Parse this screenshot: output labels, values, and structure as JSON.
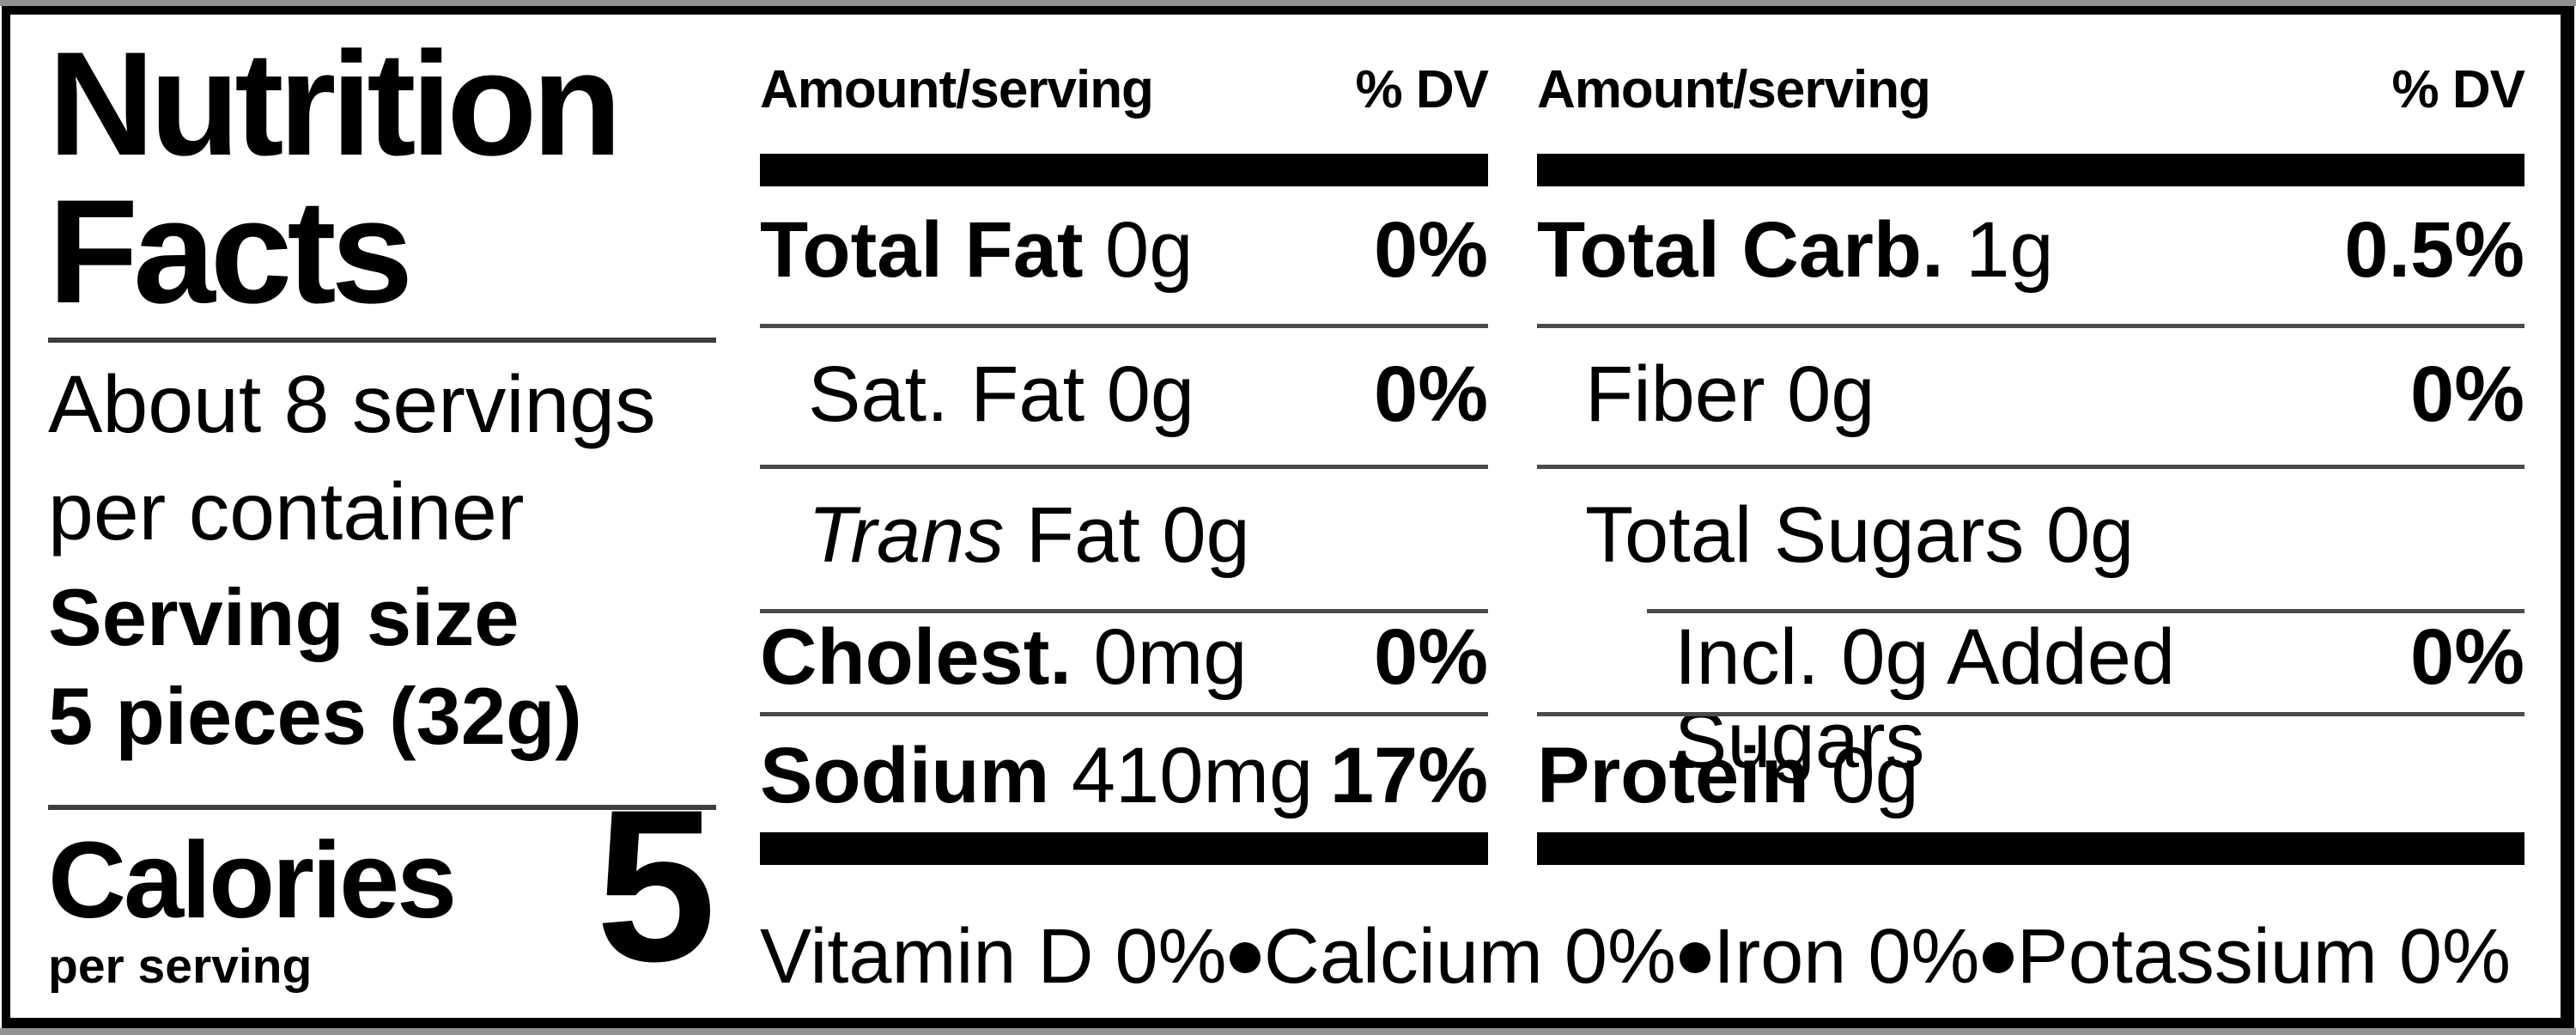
{
  "label": {
    "title_line1": "Nutrition",
    "title_line2": "Facts",
    "servings_line1": "About 8 servings",
    "servings_line2": "per container",
    "serving_size_label": "Serving size",
    "serving_size_value": "5 pieces (32g)",
    "calories_label": "Calories",
    "calories_sub": "per serving",
    "calories_value": "5"
  },
  "colors": {
    "section_bar": "#000000",
    "thin_rule": "#4a4a4a",
    "text": "#000000",
    "background": "#ffffff"
  },
  "columns": [
    {
      "header_left": "Amount/serving",
      "header_right": "% DV",
      "rows": [
        {
          "bold": "Total Fat",
          "rest": " 0g",
          "dv": "0%"
        },
        {
          "rest": "Sat. Fat 0g",
          "dv": "0%"
        },
        {
          "italic": "Trans",
          "rest": " Fat 0g",
          "dv": ""
        },
        {
          "bold": "Cholest.",
          "rest": " 0mg",
          "dv": "0%"
        },
        {
          "bold": "Sodium",
          "rest": " 410mg",
          "dv": "17%"
        }
      ]
    },
    {
      "header_left": "Amount/serving",
      "header_right": "% DV",
      "rows": [
        {
          "bold": "Total Carb.",
          "rest": " 1g",
          "dv": "0.5%"
        },
        {
          "rest": "Fiber 0g",
          "dv": "0%"
        },
        {
          "rest": "Total Sugars 0g",
          "dv": ""
        },
        {
          "rest": "Incl. 0g Added Sugars",
          "dv": "0%"
        },
        {
          "bold": "Protein",
          "rest": " 0g",
          "dv": ""
        }
      ]
    }
  ],
  "micronutrients": [
    "Vitamin D 0%",
    "Calcium 0%",
    "Iron 0%",
    "Potassium 0%"
  ]
}
